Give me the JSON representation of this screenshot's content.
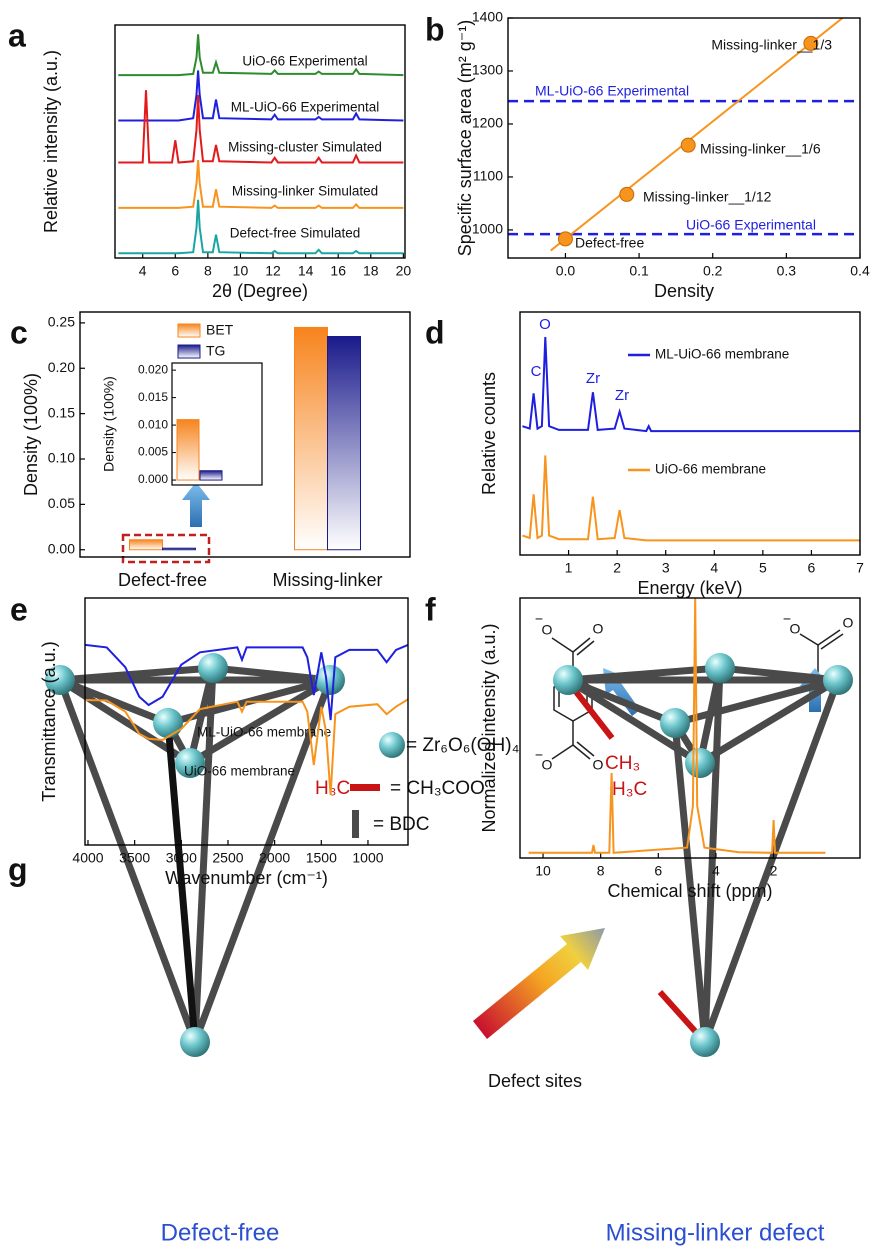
{
  "chart_data": [
    {
      "panel": "a",
      "type": "line",
      "xlabel": "2θ (Degree)",
      "ylabel": "Relative intensity (a.u.)",
      "xlim": [
        2.3,
        20.1
      ],
      "xticks": [
        4,
        6,
        8,
        10,
        12,
        14,
        16,
        18,
        20
      ],
      "ylim": [
        0,
        10
      ],
      "x": [
        2.5,
        4.0,
        4.2,
        4.4,
        5.8,
        6.0,
        6.2,
        7.1,
        7.3,
        7.4,
        7.5,
        7.7,
        8.3,
        8.5,
        8.7,
        11.9,
        12.1,
        12.3,
        14.6,
        14.8,
        15.0,
        16.9,
        17.1,
        17.3,
        20.0
      ],
      "series": [
        {
          "name": "UiO-66 Experimental",
          "color": "#2e8b2e",
          "values": [
            7.85,
            7.85,
            7.85,
            7.85,
            7.85,
            7.85,
            7.85,
            7.9,
            8.6,
            9.6,
            8.6,
            7.95,
            7.95,
            8.4,
            7.95,
            7.9,
            8.05,
            7.9,
            7.9,
            8.0,
            7.9,
            7.9,
            8.1,
            7.9,
            7.85
          ]
        },
        {
          "name": "ML-UiO-66 Experimental",
          "color": "#1f1fe0",
          "values": [
            5.9,
            5.9,
            5.9,
            5.9,
            5.9,
            5.9,
            5.9,
            6.0,
            7.0,
            8.05,
            7.0,
            6.0,
            6.0,
            6.8,
            6.0,
            5.95,
            6.15,
            5.95,
            5.95,
            6.05,
            5.95,
            5.95,
            6.2,
            5.95,
            5.9
          ]
        },
        {
          "name": "Missing-cluster Simulated",
          "color": "#e31a1c",
          "values": [
            4.1,
            4.1,
            7.2,
            4.1,
            4.1,
            5.05,
            4.1,
            4.15,
            5.5,
            7.0,
            5.5,
            4.15,
            4.15,
            4.85,
            4.15,
            4.1,
            4.3,
            4.1,
            4.1,
            4.3,
            4.1,
            4.1,
            4.4,
            4.1,
            4.1
          ]
        },
        {
          "name": "Missing-linker Simulated",
          "color": "#f7941d",
          "values": [
            2.15,
            2.15,
            2.15,
            2.15,
            2.15,
            2.15,
            2.15,
            2.2,
            3.2,
            4.2,
            3.2,
            2.2,
            2.2,
            2.95,
            2.2,
            2.15,
            2.25,
            2.15,
            2.15,
            2.25,
            2.15,
            2.15,
            2.3,
            2.15,
            2.15
          ]
        },
        {
          "name": "Defect-free Simulated",
          "color": "#1aa5a5",
          "values": [
            0.2,
            0.2,
            0.2,
            0.2,
            0.2,
            0.2,
            0.2,
            0.25,
            1.3,
            2.5,
            1.3,
            0.25,
            0.25,
            1.0,
            0.25,
            0.2,
            0.3,
            0.2,
            0.2,
            0.35,
            0.2,
            0.2,
            0.3,
            0.2,
            0.2
          ]
        }
      ]
    },
    {
      "panel": "b",
      "type": "scatter",
      "xlabel": "Density",
      "ylabel": "Specific surface area (m² g⁻¹)",
      "xlim": [
        -0.078,
        0.4
      ],
      "xticks": [
        {
          "value": 0,
          "label": "0.0"
        },
        0.1,
        0.2,
        0.3,
        0.4
      ],
      "ylim": [
        947,
        1400
      ],
      "yticks": [
        1000,
        1100,
        1200,
        1300,
        1400
      ],
      "x": [
        0,
        0.0833,
        0.1667,
        0.3333
      ],
      "series": [
        {
          "color": "#f7941d",
          "values": [
            983,
            1067,
            1160,
            1352
          ],
          "point_labels": [
            "Defect-free",
            "Missing-linker__1/12",
            "Missing-linker__1/6",
            "Missing-linker__1/3"
          ]
        }
      ],
      "fit": {
        "x": [
          -0.02,
          0.378
        ],
        "values": [
          961,
          1402
        ]
      },
      "hlines": [
        {
          "label": "ML-UiO-66 Experimental",
          "value": 1243,
          "color": "#1f1fe0"
        },
        {
          "label": "UiO-66 Experimental",
          "value": 992,
          "color": "#1f1fe0"
        }
      ]
    },
    {
      "panel": "c",
      "type": "bar",
      "ylabel": "Density (100%)",
      "categories": [
        "Defect-free",
        "Missing-linker"
      ],
      "ylim": [
        -0.008,
        0.262
      ],
      "yticks": [
        {
          "value": 0,
          "label": "0.00"
        },
        {
          "value": 0.05,
          "label": "0.05"
        },
        {
          "value": 0.1,
          "label": "0.10"
        },
        {
          "value": 0.15,
          "label": "0.15"
        },
        {
          "value": 0.2,
          "label": "0.20"
        },
        {
          "value": 0.25,
          "label": "0.25"
        }
      ],
      "series": [
        {
          "name": "BET",
          "color": "#f7841d",
          "values": [
            0.011,
            0.245
          ]
        },
        {
          "name": "TG",
          "color": "#1a1a8c",
          "values": [
            0.0017,
            0.235
          ]
        }
      ],
      "inset": {
        "ylabel": "Density (100%)",
        "ylim": [
          -0.0009,
          0.0213
        ],
        "yticks": [
          {
            "value": 0,
            "label": "0.000"
          },
          {
            "value": 0.005,
            "label": "0.005"
          },
          {
            "value": 0.01,
            "label": "0.010"
          },
          {
            "value": 0.015,
            "label": "0.015"
          },
          {
            "value": 0.02,
            "label": "0.020"
          }
        ]
      }
    },
    {
      "panel": "d",
      "type": "line",
      "xlabel": "Energy (keV)",
      "ylabel": "Relative counts",
      "xlim": [
        0,
        7
      ],
      "xticks": [
        1,
        2,
        3,
        4,
        5,
        6,
        7
      ],
      "ylim": [
        0,
        10
      ],
      "x": [
        0.05,
        0.2,
        0.28,
        0.36,
        0.45,
        0.52,
        0.6,
        0.8,
        1.4,
        1.5,
        1.6,
        1.95,
        2.05,
        2.15,
        2.6,
        2.65,
        2.7,
        3,
        7
      ],
      "series": [
        {
          "name": "ML-UiO-66 membrane",
          "color": "#1f1fe0",
          "values": [
            5.3,
            5.2,
            6.65,
            5.2,
            5.3,
            8.97,
            5.3,
            5.15,
            5.15,
            6.7,
            5.15,
            5.2,
            5.9,
            5.2,
            5.1,
            5.3,
            5.1,
            5.1,
            5.1
          ]
        },
        {
          "name": "UiO-66 membrane",
          "color": "#f7941d",
          "values": [
            0.8,
            0.7,
            2.5,
            0.7,
            0.8,
            4.1,
            0.8,
            0.65,
            0.65,
            2.4,
            0.65,
            0.7,
            1.85,
            0.7,
            0.6,
            0.6,
            0.6,
            0.6,
            0.6
          ]
        }
      ],
      "annotations": [
        "C",
        "O",
        "Zr",
        "Zr"
      ]
    },
    {
      "panel": "e",
      "type": "line",
      "xlabel": "Wavenumber (cm⁻¹)",
      "ylabel": "Transmittance (a.u.)",
      "xlim": [
        4032,
        571
      ],
      "xticks": [
        4000,
        3500,
        3000,
        2500,
        2000,
        1500,
        1000
      ],
      "ylim": [
        0,
        10
      ],
      "x": [
        4032,
        3800,
        3600,
        3450,
        3350,
        3200,
        3000,
        2800,
        2400,
        2350,
        2300,
        1700,
        1650,
        1580,
        1500,
        1450,
        1400,
        1350,
        1200,
        900,
        800,
        700,
        571
      ],
      "series": [
        {
          "name": "ML-UiO-66 membrane",
          "color": "#1f1fe0",
          "values": [
            8.1,
            8.0,
            7.2,
            6.0,
            5.67,
            6.0,
            7.3,
            7.8,
            8.0,
            7.5,
            8.0,
            8.0,
            7.6,
            6.07,
            7.8,
            6.8,
            5.06,
            7.6,
            7.9,
            7.9,
            7.4,
            7.9,
            8.1
          ]
        },
        {
          "name": "UiO-66 membrane",
          "color": "#f7941d",
          "values": [
            5.87,
            5.85,
            5.4,
            4.5,
            4.3,
            4.25,
            4.7,
            5.5,
            5.8,
            5.4,
            5.8,
            5.8,
            5.4,
            3.24,
            5.6,
            4.6,
            2.02,
            5.3,
            5.6,
            5.7,
            5.3,
            5.6,
            5.9
          ]
        }
      ]
    },
    {
      "panel": "f",
      "type": "line",
      "xlabel": "Chemical shift (ppm)",
      "ylabel": "Normalized intensity (a.u.)",
      "xlim": [
        10.8,
        -1.0
      ],
      "xticks": [
        10,
        8,
        6,
        4,
        2
      ],
      "ylim": [
        0,
        10
      ],
      "x": [
        10.5,
        8.3,
        8.25,
        8.2,
        7.7,
        7.62,
        7.55,
        5.0,
        4.8,
        4.72,
        4.65,
        4.4,
        3.2,
        2.05,
        2.0,
        1.95,
        0.2
      ],
      "series": [
        {
          "color": "#f7941d",
          "values": [
            0.2,
            0.2,
            0.5,
            0.2,
            0.2,
            3.27,
            0.2,
            0.4,
            2,
            10,
            2,
            0.4,
            0.22,
            0.2,
            1.46,
            0.2,
            0.2
          ]
        }
      ]
    }
  ],
  "molecules": {
    "bdc": {
      "atoms": [
        "O",
        "O",
        "O",
        "O"
      ],
      "charges": [
        "−",
        "−"
      ]
    },
    "acetate": {
      "atoms": [
        "O",
        "O"
      ],
      "charges": [
        "−"
      ]
    }
  },
  "diagram": {
    "panel": "g",
    "legend": [
      "= Zr₆O₆(OH)₄",
      "H₃C",
      "= CH₃COO",
      "= BDC"
    ],
    "groups": [
      "CH₃",
      "H₃C"
    ],
    "annotation": "Defect sites",
    "captions": [
      "Defect-free",
      "Missing-linker defect"
    ]
  }
}
